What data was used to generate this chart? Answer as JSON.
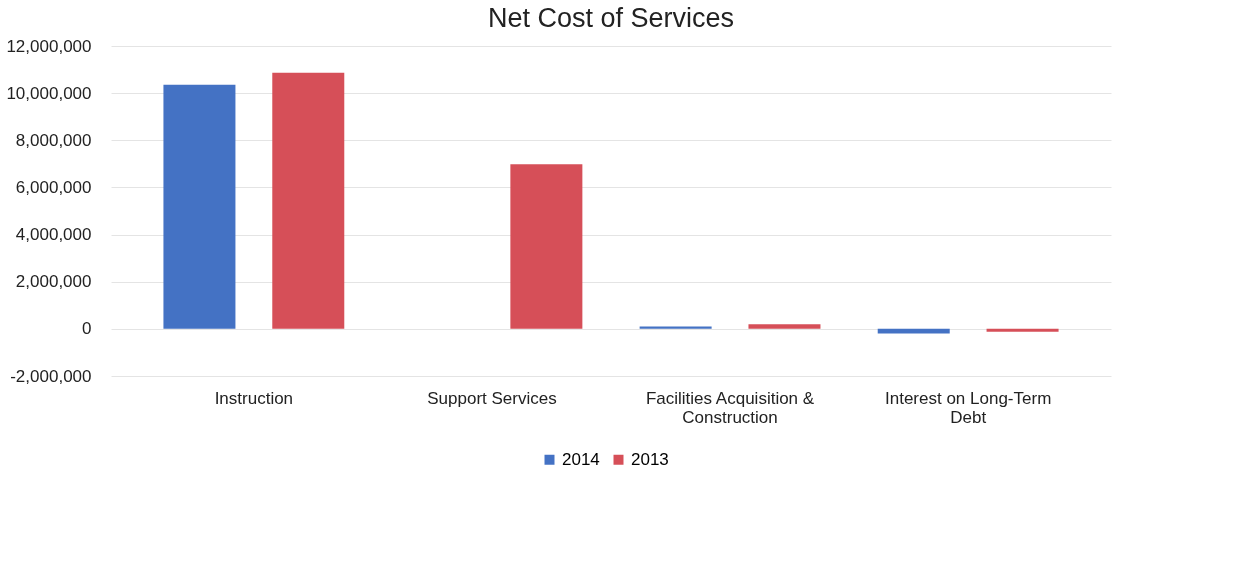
{
  "chart_data": {
    "type": "bar",
    "title": "Net Cost of Services",
    "categories": [
      "Instruction",
      "Support Services",
      "Facilities Acquisition & Construction",
      "Interest on Long-Term Debt"
    ],
    "series": [
      {
        "name": "2014",
        "color": "#4472c4",
        "values": [
          10360000,
          0,
          100000,
          -200000
        ]
      },
      {
        "name": "2013",
        "color": "#d64f58",
        "values": [
          10870000,
          6980000,
          200000,
          -120000
        ]
      }
    ],
    "ylim": [
      -2000000,
      12000000
    ],
    "yticks": [
      {
        "value": -2000000,
        "label": "-2,000,000"
      },
      0,
      {
        "value": 2000000,
        "label": "2,000,000"
      },
      {
        "value": 4000000,
        "label": "4,000,000"
      },
      {
        "value": 6000000,
        "label": "6,000,000"
      },
      {
        "value": 8000000,
        "label": "8,000,000"
      },
      {
        "value": 10000000,
        "label": "10,000,000"
      },
      {
        "value": 12000000,
        "label": "12,000,000"
      }
    ],
    "grid": "y",
    "legend": "bottom"
  }
}
